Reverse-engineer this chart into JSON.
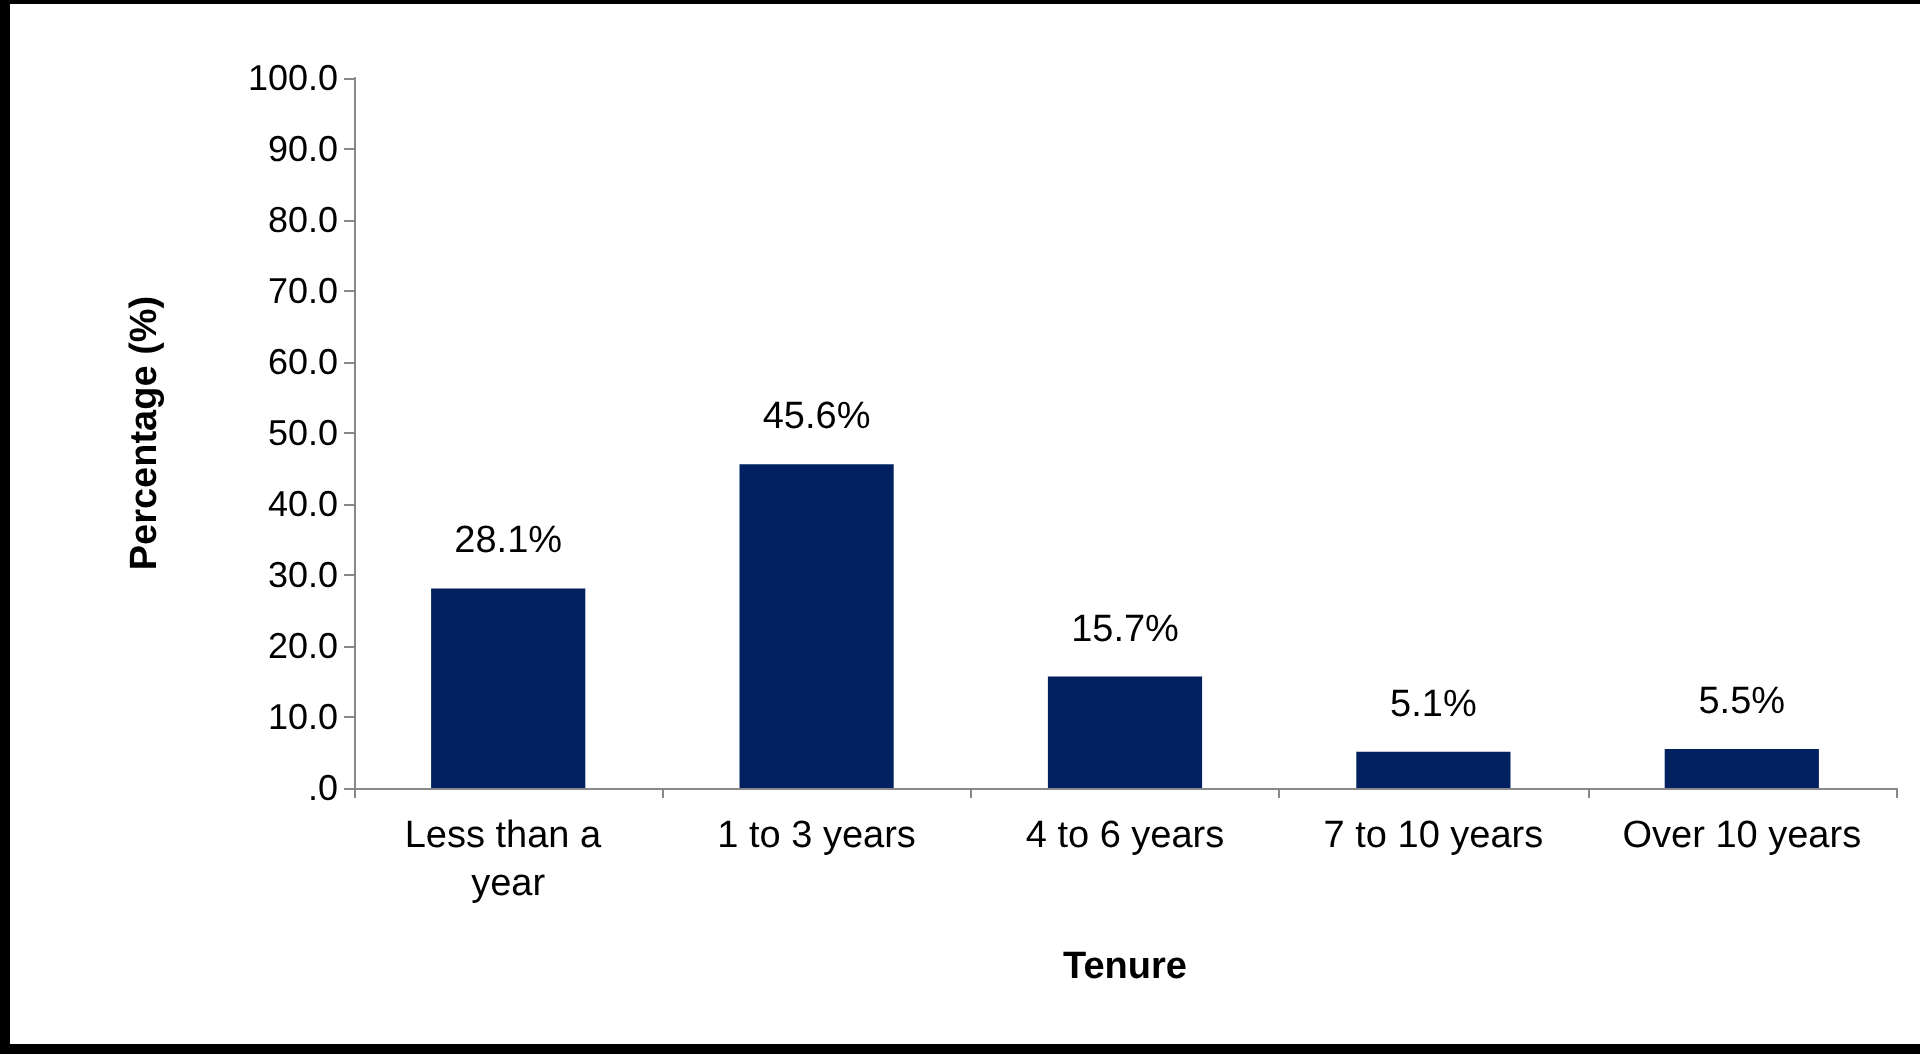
{
  "chart_data": {
    "type": "bar",
    "xlabel": "Tenure",
    "ylabel": "Percentage (%)",
    "categories": [
      "Less than a year",
      "1 to 3 years",
      "4 to 6 years",
      "7 to 10 years",
      "Over 10 years"
    ],
    "values": [
      28.1,
      45.6,
      15.7,
      5.1,
      5.5
    ],
    "value_labels": [
      "28.1%",
      "45.6%",
      "15.7%",
      "5.1%",
      "5.5%"
    ],
    "color": "#002060",
    "ylim": [
      0,
      100
    ],
    "yticks": [
      {
        "value": 0,
        "label": ".0"
      },
      {
        "value": 10,
        "label": "10.0"
      },
      {
        "value": 20,
        "label": "20.0"
      },
      {
        "value": 30,
        "label": "30.0"
      },
      {
        "value": 40,
        "label": "40.0"
      },
      {
        "value": 50,
        "label": "50.0"
      },
      {
        "value": 60,
        "label": "60.0"
      },
      {
        "value": 70,
        "label": "70.0"
      },
      {
        "value": 80,
        "label": "80.0"
      },
      {
        "value": 90,
        "label": "90.0"
      },
      {
        "value": 100,
        "label": "100.0"
      }
    ],
    "grid": false
  }
}
